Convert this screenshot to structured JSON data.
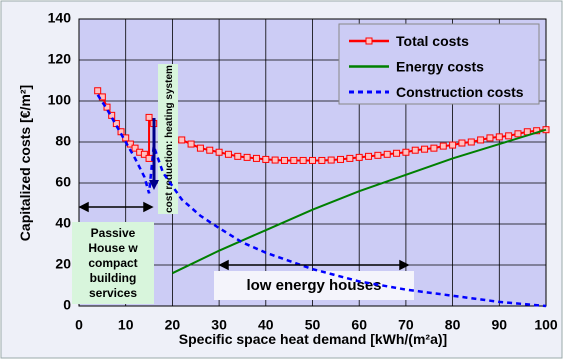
{
  "chart_data": {
    "type": "line",
    "ylabel": "Capitalized costs [€/m²]",
    "xlabel": "Specific space  heat demand [kWh/(m²a)]",
    "xlim": [
      0,
      100
    ],
    "xticks": [
      0,
      10,
      20,
      30,
      40,
      50,
      60,
      70,
      80,
      90,
      100
    ],
    "ylim": [
      0,
      140
    ],
    "yticks": [
      0,
      20,
      40,
      60,
      80,
      100,
      120,
      140
    ],
    "grid": true,
    "legend": "top-right",
    "series": [
      {
        "name": "Total costs",
        "color": "#ff0000",
        "marker": "square",
        "style": "solid",
        "x": [
          4,
          5,
          6,
          7,
          8,
          9,
          10,
          11,
          12,
          13,
          14,
          15,
          15,
          16,
          null,
          22,
          24,
          26,
          28,
          30,
          32,
          34,
          36,
          38,
          40,
          42,
          44,
          46,
          48,
          50,
          52,
          54,
          56,
          58,
          60,
          62,
          64,
          66,
          68,
          70,
          72,
          74,
          76,
          78,
          80,
          82,
          84,
          86,
          88,
          90,
          92,
          94,
          96,
          98,
          100
        ],
        "values": [
          105,
          102,
          97,
          93,
          89,
          85,
          82,
          79,
          77,
          75,
          74,
          72,
          92,
          89,
          null,
          81,
          79,
          77,
          76,
          75,
          74,
          73,
          72.5,
          72,
          71.5,
          71.2,
          71,
          71,
          71,
          71,
          71,
          71.2,
          71.5,
          72,
          72.5,
          73,
          73.5,
          74,
          74.5,
          75,
          76,
          76.5,
          77,
          78,
          78.5,
          79.5,
          80,
          81,
          82,
          82.5,
          83,
          84,
          85,
          85.5,
          86
        ]
      },
      {
        "name": "Energy costs",
        "color": "#008000",
        "marker": "none",
        "style": "solid",
        "x": [
          20,
          30,
          40,
          50,
          60,
          70,
          80,
          90,
          100
        ],
        "values": [
          16,
          27,
          37,
          47,
          56,
          64,
          72,
          79,
          86
        ]
      },
      {
        "name": "Construction costs",
        "color": "#0000ff",
        "marker": "none",
        "style": "dashed",
        "x": [
          4,
          6,
          8,
          10,
          12,
          14,
          15,
          16,
          18,
          22,
          26,
          30,
          35,
          40,
          50,
          60,
          70,
          80,
          90,
          100
        ],
        "values": [
          103,
          96,
          88,
          80,
          72,
          63,
          55,
          78,
          65,
          52,
          44,
          38,
          31,
          26,
          18,
          12,
          8,
          5,
          2,
          0
        ]
      }
    ],
    "annotations": {
      "heating": "cost reduction: heating system",
      "passive": [
        "Passive",
        "House w",
        "compact",
        "building",
        "services"
      ],
      "low_energy": "low energy houses"
    }
  }
}
